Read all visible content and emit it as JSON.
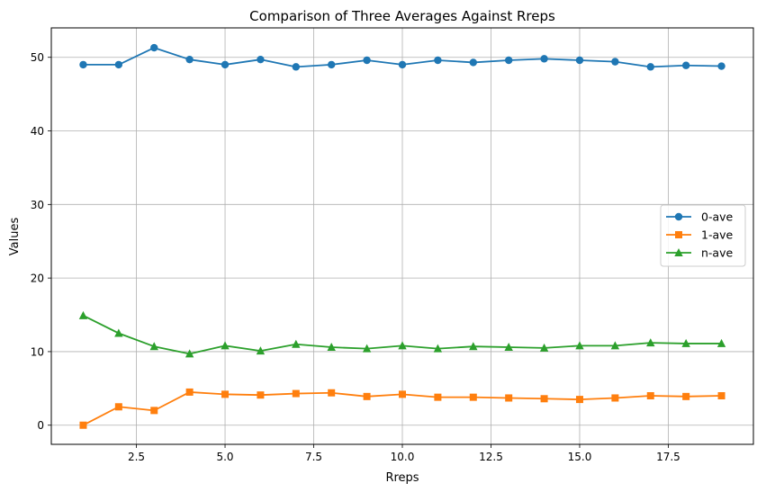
{
  "chart_data": {
    "type": "line",
    "title": "Comparison of Three Averages Against Rreps",
    "xlabel": "Rreps",
    "ylabel": "Values",
    "xlim": [
      0.1,
      19.9
    ],
    "ylim": [
      -2.6,
      54.0
    ],
    "xticks": [
      2.5,
      5.0,
      7.5,
      10.0,
      12.5,
      15.0,
      17.5
    ],
    "xtick_labels": [
      "2.5",
      "5.0",
      "7.5",
      "10.0",
      "12.5",
      "15.0",
      "17.5"
    ],
    "yticks": [
      0,
      10,
      20,
      30,
      40,
      50
    ],
    "ytick_labels": [
      "0",
      "10",
      "20",
      "30",
      "40",
      "50"
    ],
    "grid": true,
    "legend_position": "center-right",
    "x": [
      1,
      2,
      3,
      4,
      5,
      6,
      7,
      8,
      9,
      10,
      11,
      12,
      13,
      14,
      15,
      16,
      17,
      18,
      19
    ],
    "series": [
      {
        "name": "0-ave",
        "color": "#1f77b4",
        "marker": "circle",
        "values": [
          49.0,
          49.0,
          51.3,
          49.7,
          49.0,
          49.7,
          48.7,
          49.0,
          49.6,
          49.0,
          49.6,
          49.3,
          49.6,
          49.8,
          49.6,
          49.4,
          48.7,
          48.9,
          48.8
        ]
      },
      {
        "name": "1-ave",
        "color": "#ff7f0e",
        "marker": "square",
        "values": [
          0.0,
          2.5,
          2.0,
          4.5,
          4.2,
          4.1,
          4.3,
          4.4,
          3.9,
          4.2,
          3.8,
          3.8,
          3.7,
          3.6,
          3.5,
          3.7,
          4.0,
          3.9,
          4.0
        ]
      },
      {
        "name": "n-ave",
        "color": "#2ca02c",
        "marker": "triangle",
        "values": [
          14.9,
          12.5,
          10.7,
          9.7,
          10.8,
          10.1,
          11.0,
          10.6,
          10.4,
          10.8,
          10.4,
          10.7,
          10.6,
          10.5,
          10.8,
          10.8,
          11.2,
          11.1,
          11.1
        ]
      }
    ]
  }
}
